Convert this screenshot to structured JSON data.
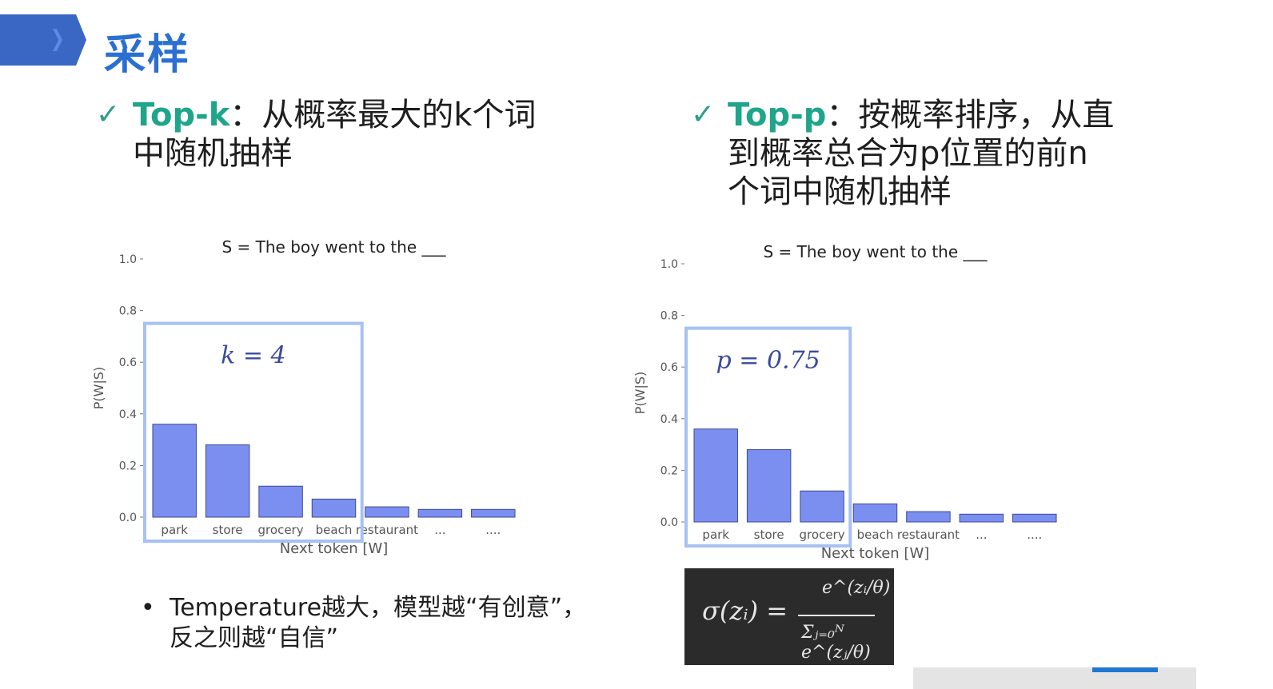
{
  "slide": {
    "title": "采样"
  },
  "points": {
    "topk": {
      "key": "Top-k",
      "line1": "：从概率最大的k个词",
      "line2": "中随机抽样"
    },
    "topp": {
      "key": "Top-p",
      "line1": "：按概率排序，从直",
      "line2": "到概率总合为p位置的前n",
      "line3": "个词中随机抽样"
    }
  },
  "chart_data": [
    {
      "type": "bar",
      "title": "S = The boy went to the ___",
      "xlabel": "Next token [W]",
      "ylabel": "P(W|S)",
      "categories": [
        "park",
        "store",
        "grocery",
        "beach",
        "restaurant",
        "...",
        "...."
      ],
      "values": [
        0.36,
        0.28,
        0.12,
        0.07,
        0.04,
        0.03,
        0.03
      ],
      "ylim": [
        0,
        1.0
      ],
      "yticks": [
        "0.0",
        "0.2",
        "0.4",
        "0.6",
        "0.8",
        "1.0"
      ],
      "grid": false,
      "annotation": "k = 4",
      "highlight_count": 4,
      "bar_color": "#7b8ff0",
      "box_color": "#a7c1f2"
    },
    {
      "type": "bar",
      "title": "S = The boy went to the ___",
      "xlabel": "Next token [W]",
      "ylabel": "P(W|S)",
      "categories": [
        "park",
        "store",
        "grocery",
        "beach",
        "restaurant",
        "...",
        "...."
      ],
      "values": [
        0.36,
        0.28,
        0.12,
        0.07,
        0.04,
        0.03,
        0.03
      ],
      "ylim": [
        0,
        1.0
      ],
      "yticks": [
        "0.0",
        "0.2",
        "0.4",
        "0.6",
        "0.8",
        "1.0"
      ],
      "grid": false,
      "annotation": "p = 0.75",
      "highlight_count": 3,
      "bar_color": "#7b8ff0",
      "box_color": "#a7c1f2"
    }
  ],
  "formula": {
    "lhs": "σ(zᵢ) =",
    "numerator": "e^(zᵢ/θ)",
    "denominator": "Σⱼ₌₀ᴺ e^(zⱼ/θ)"
  },
  "bullet": {
    "line1": "Temperature越大，模型越“有创意”，",
    "line2": "反之则越“自信”"
  }
}
